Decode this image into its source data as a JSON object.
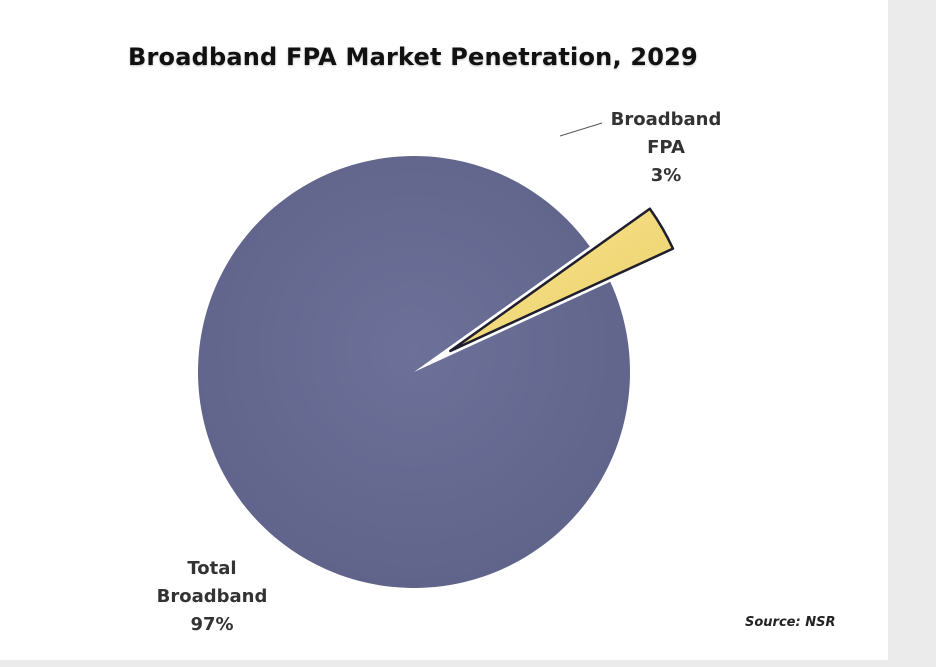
{
  "chart_data": {
    "type": "pie",
    "title": "Broadband FPA Market Penetration, 2029",
    "slices": [
      {
        "name_lines": [
          "Broadband",
          "FPA"
        ],
        "value_label": "3%",
        "value": 3,
        "color": "#f4dd7c",
        "exploded": true
      },
      {
        "name_lines": [
          "Total",
          "Broadband"
        ],
        "value_label": "97%",
        "value": 97,
        "color": "#676b92",
        "exploded": false
      }
    ],
    "source": "Source: NSR"
  },
  "colors": {
    "outline": "#1e1e2e",
    "side_panel": "#ebebeb"
  }
}
